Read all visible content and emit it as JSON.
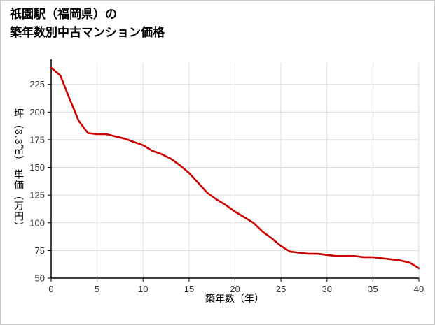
{
  "header": {
    "title_line1": "祇園駅（福岡県）の",
    "title_line2": "築年数別中古マンション価格"
  },
  "chart_data": {
    "type": "line",
    "title": "祇園駅（福岡県）の築年数別中古マンション価格",
    "xlabel": "築年数（年）",
    "ylabel": "坪（3.3㎡） 単価（万円）",
    "x": [
      0,
      1,
      2,
      3,
      4,
      5,
      6,
      7,
      8,
      9,
      10,
      11,
      12,
      13,
      14,
      15,
      16,
      17,
      18,
      19,
      20,
      21,
      22,
      23,
      24,
      25,
      26,
      27,
      28,
      29,
      30,
      31,
      32,
      33,
      34,
      35,
      36,
      37,
      38,
      39,
      40
    ],
    "values": [
      240,
      233,
      212,
      192,
      181,
      180,
      180,
      178,
      176,
      173,
      170,
      165,
      162,
      158,
      152,
      145,
      136,
      127,
      121,
      116,
      110,
      105,
      100,
      92,
      86,
      79,
      74,
      73,
      72,
      72,
      71,
      70,
      70,
      70,
      69,
      69,
      68,
      67,
      66,
      64,
      59
    ],
    "xlim": [
      0,
      40
    ],
    "ylim": [
      50,
      245
    ],
    "xticks": [
      0,
      5,
      10,
      15,
      20,
      25,
      30,
      35,
      40
    ],
    "yticks": [
      50,
      75,
      100,
      125,
      150,
      175,
      200,
      225
    ],
    "grid": true,
    "legend": "none",
    "line_color": "#cc0000",
    "grid_color": "#dcdcdc",
    "axis_color": "#000000"
  }
}
